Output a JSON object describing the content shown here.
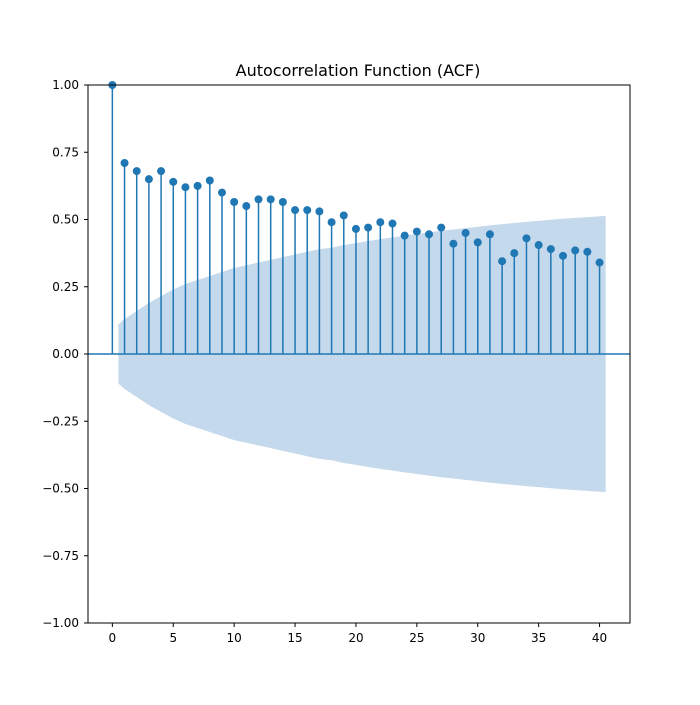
{
  "chart_data": {
    "type": "stem",
    "title": "Autocorrelation Function (ACF)",
    "xlabel": "",
    "ylabel": "",
    "xlim": [
      -2,
      42.5
    ],
    "ylim": [
      -1.0,
      1.0
    ],
    "x_ticks": [
      0,
      5,
      10,
      15,
      20,
      25,
      30,
      35,
      40
    ],
    "y_ticks": [
      -1.0,
      -0.75,
      -0.5,
      -0.25,
      0.0,
      0.25,
      0.5,
      0.75,
      1.0
    ],
    "y_tick_labels": [
      "−1.00",
      "−0.75",
      "−0.50",
      "−0.25",
      "0.00",
      "0.25",
      "0.50",
      "0.75",
      "1.00"
    ],
    "x_tick_labels": [
      "0",
      "5",
      "10",
      "15",
      "20",
      "25",
      "30",
      "35",
      "40"
    ],
    "grid": false,
    "lags": [
      0,
      1,
      2,
      3,
      4,
      5,
      6,
      7,
      8,
      9,
      10,
      11,
      12,
      13,
      14,
      15,
      16,
      17,
      18,
      19,
      20,
      21,
      22,
      23,
      24,
      25,
      26,
      27,
      28,
      29,
      30,
      31,
      32,
      33,
      34,
      35,
      36,
      37,
      38,
      39,
      40
    ],
    "values": [
      1.0,
      0.71,
      0.68,
      0.65,
      0.68,
      0.64,
      0.62,
      0.625,
      0.645,
      0.6,
      0.565,
      0.55,
      0.575,
      0.575,
      0.565,
      0.535,
      0.535,
      0.53,
      0.49,
      0.515,
      0.465,
      0.47,
      0.49,
      0.485,
      0.44,
      0.455,
      0.445,
      0.47,
      0.41,
      0.45,
      0.415,
      0.445,
      0.345,
      0.375,
      0.43,
      0.405,
      0.39,
      0.365,
      0.385,
      0.38,
      0.34
    ],
    "confidence_band": {
      "lags": [
        0.5,
        1,
        2,
        3,
        4,
        5,
        6,
        7,
        8,
        9,
        10,
        11,
        12,
        13,
        14,
        15,
        16,
        17,
        18,
        19,
        20,
        21,
        22,
        23,
        24,
        25,
        26,
        27,
        28,
        29,
        30,
        31,
        32,
        33,
        34,
        35,
        36,
        37,
        38,
        39,
        40,
        40.5
      ],
      "upper": [
        0.11,
        0.13,
        0.16,
        0.19,
        0.215,
        0.24,
        0.26,
        0.275,
        0.29,
        0.305,
        0.32,
        0.33,
        0.34,
        0.35,
        0.36,
        0.37,
        0.38,
        0.39,
        0.395,
        0.405,
        0.412,
        0.42,
        0.427,
        0.433,
        0.44,
        0.446,
        0.452,
        0.458,
        0.463,
        0.468,
        0.473,
        0.478,
        0.483,
        0.487,
        0.491,
        0.495,
        0.499,
        0.503,
        0.506,
        0.509,
        0.512,
        0.513
      ],
      "color": "#c5d9ec"
    },
    "colors": {
      "stem": "#1f77b4",
      "marker": "#1f77b4",
      "zero_line": "#1f77b4",
      "band": "#c5d9ec"
    }
  }
}
